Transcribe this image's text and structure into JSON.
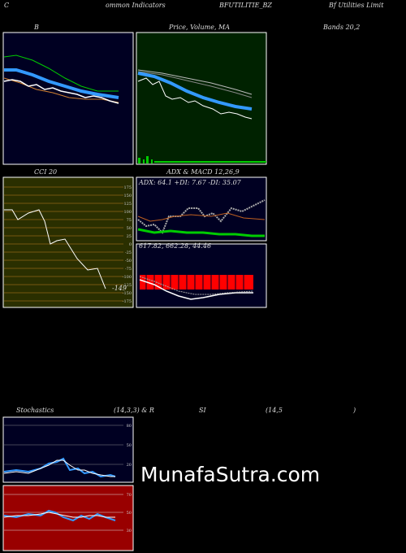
{
  "header": {
    "left": "C",
    "left2": "ommon Indicators",
    "symbol": "BFUTILITIE_BZ",
    "company": "Bf Utilities Limit"
  },
  "row1": {
    "bollinger": "B",
    "price": "Price, Volume, MA",
    "bands": "Bands 20,2"
  },
  "row2": {
    "cci": "CCI 20",
    "adx_macd": "ADX  & MACD 12,26,9",
    "adx_values": "ADX: 64.1 +DI: 7.67 -DI: 35.07",
    "macd_values": "617.82, 662.28, 44.46",
    "cci_value": "-149",
    "cci_ticks": [
      175,
      150,
      125,
      100,
      75,
      50,
      25,
      0,
      -25,
      -50,
      -75,
      -100,
      -125,
      -150,
      -175
    ]
  },
  "row3": {
    "stochastics": "Stochastics",
    "params": "(14,3,3) & R",
    "si": "SI",
    "rsi_params": "(14,5",
    "close": ")",
    "stoch_ticks": [
      80,
      50,
      20
    ],
    "rsi_ticks": [
      70,
      50,
      30
    ]
  },
  "watermark": "MunafaSutra.com"
}
